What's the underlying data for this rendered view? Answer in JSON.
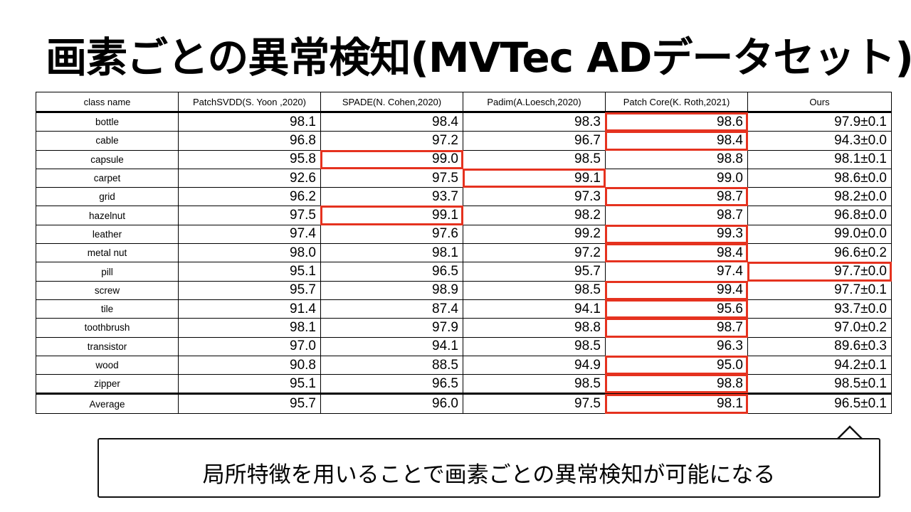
{
  "title": "画素ごとの異常検知(MVTec ADデータセット)",
  "table": {
    "headers": [
      "class name",
      "PatchSVDD(S. Yoon ,2020)",
      "SPADE(N. Cohen,2020)",
      "Padim(A.Loesch,2020)",
      "Patch Core(K. Roth,2021)",
      "Ours"
    ],
    "rows": [
      {
        "name": "bottle",
        "values": [
          "98.1",
          "98.4",
          "98.3",
          "98.6",
          "97.9±0.1"
        ],
        "highlight": [
          false,
          false,
          false,
          true,
          false
        ]
      },
      {
        "name": "cable",
        "values": [
          "96.8",
          "97.2",
          "96.7",
          "98.4",
          "94.3±0.0"
        ],
        "highlight": [
          false,
          false,
          false,
          true,
          false
        ]
      },
      {
        "name": "capsule",
        "values": [
          "95.8",
          "99.0",
          "98.5",
          "98.8",
          "98.1±0.1"
        ],
        "highlight": [
          false,
          true,
          false,
          false,
          false
        ]
      },
      {
        "name": "carpet",
        "values": [
          "92.6",
          "97.5",
          "99.1",
          "99.0",
          "98.6±0.0"
        ],
        "highlight": [
          false,
          false,
          true,
          false,
          false
        ]
      },
      {
        "name": "grid",
        "values": [
          "96.2",
          "93.7",
          "97.3",
          "98.7",
          "98.2±0.0"
        ],
        "highlight": [
          false,
          false,
          false,
          true,
          false
        ]
      },
      {
        "name": "hazelnut",
        "values": [
          "97.5",
          "99.1",
          "98.2",
          "98.7",
          "96.8±0.0"
        ],
        "highlight": [
          false,
          true,
          false,
          false,
          false
        ]
      },
      {
        "name": "leather",
        "values": [
          "97.4",
          "97.6",
          "99.2",
          "99.3",
          "99.0±0.0"
        ],
        "highlight": [
          false,
          false,
          false,
          true,
          false
        ]
      },
      {
        "name": "metal nut",
        "values": [
          "98.0",
          "98.1",
          "97.2",
          "98.4",
          "96.6±0.2"
        ],
        "highlight": [
          false,
          false,
          false,
          true,
          false
        ]
      },
      {
        "name": "pill",
        "values": [
          "95.1",
          "96.5",
          "95.7",
          "97.4",
          "97.7±0.0"
        ],
        "highlight": [
          false,
          false,
          false,
          false,
          true
        ]
      },
      {
        "name": "screw",
        "values": [
          "95.7",
          "98.9",
          "98.5",
          "99.4",
          "97.7±0.1"
        ],
        "highlight": [
          false,
          false,
          false,
          true,
          false
        ]
      },
      {
        "name": "tile",
        "values": [
          "91.4",
          "87.4",
          "94.1",
          "95.6",
          "93.7±0.0"
        ],
        "highlight": [
          false,
          false,
          false,
          true,
          false
        ]
      },
      {
        "name": "toothbrush",
        "values": [
          "98.1",
          "97.9",
          "98.8",
          "98.7",
          "97.0±0.2"
        ],
        "highlight": [
          false,
          false,
          false,
          true,
          false
        ]
      },
      {
        "name": "transistor",
        "values": [
          "97.0",
          "94.1",
          "98.5",
          "96.3",
          "89.6±0.3"
        ],
        "highlight": [
          false,
          false,
          false,
          false,
          false
        ]
      },
      {
        "name": "wood",
        "values": [
          "90.8",
          "88.5",
          "94.9",
          "95.0",
          "94.2±0.1"
        ],
        "highlight": [
          false,
          false,
          false,
          true,
          false
        ]
      },
      {
        "name": "zipper",
        "values": [
          "95.1",
          "96.5",
          "98.5",
          "98.8",
          "98.5±0.1"
        ],
        "highlight": [
          false,
          false,
          false,
          true,
          false
        ]
      },
      {
        "name": "Average",
        "values": [
          "95.7",
          "96.0",
          "97.5",
          "98.1",
          "96.5±0.1"
        ],
        "highlight": [
          false,
          false,
          false,
          true,
          false
        ]
      }
    ]
  },
  "callout": {
    "text": "局所特徴を用いることで画素ごとの異常検知が可能になる"
  },
  "colors": {
    "highlight": "#e5321f"
  }
}
